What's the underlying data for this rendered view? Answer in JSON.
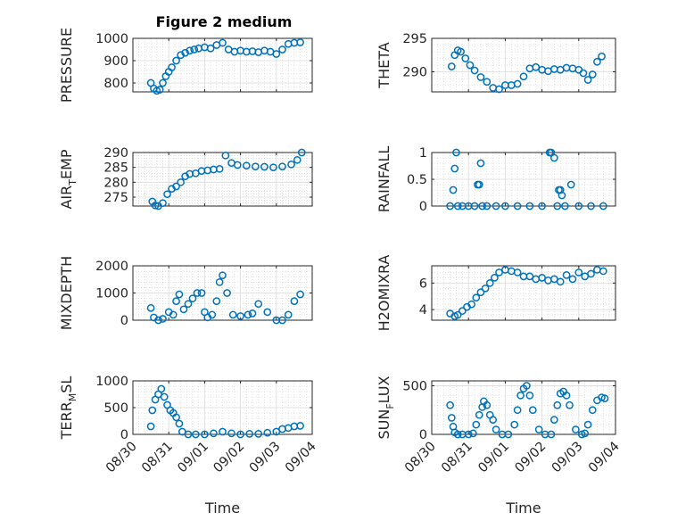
{
  "figure_title": "Figure 2 medium",
  "marker_color": "#0072BD",
  "date_ticks": [
    "08/30",
    "08/31",
    "09/01",
    "09/02",
    "09/03",
    "09/04"
  ],
  "chart_data": [
    {
      "type": "scatter",
      "ylabel": "PRESSURE",
      "ylim": [
        760,
        1000
      ],
      "yticks": [
        800,
        900,
        1000
      ],
      "ytick_labels": [
        "800",
        "900",
        "1000"
      ],
      "xlabel": "",
      "grid": true,
      "title": "Figure 2 medium",
      "x": [
        "08/30 12:00",
        "08/30 14:00",
        "08/30 16:00",
        "08/30 18:00",
        "08/30 20:00",
        "08/30 22:00",
        "08/31 00:00",
        "08/31 02:00",
        "08/31 05:00",
        "08/31 08:00",
        "08/31 11:00",
        "08/31 14:00",
        "08/31 17:00",
        "08/31 20:00",
        "09/01 00:00",
        "09/01 04:00",
        "09/01 08:00",
        "09/01 12:00",
        "09/01 16:00",
        "09/01 20:00",
        "09/02 00:00",
        "09/02 04:00",
        "09/02 08:00",
        "09/02 12:00",
        "09/02 16:00",
        "09/02 20:00",
        "09/03 00:00",
        "09/03 04:00",
        "09/03 08:00",
        "09/03 12:00",
        "09/03 16:00"
      ],
      "y": [
        800,
        775,
        765,
        770,
        800,
        830,
        850,
        870,
        900,
        925,
        935,
        945,
        950,
        955,
        960,
        955,
        970,
        980,
        950,
        940,
        945,
        940,
        942,
        938,
        945,
        940,
        930,
        950,
        975,
        980,
        982
      ]
    },
    {
      "type": "scatter",
      "ylabel": "THETA",
      "ylim": [
        287,
        295
      ],
      "yticks": [
        290,
        295
      ],
      "ytick_labels": [
        "290",
        "295"
      ],
      "xlabel": "",
      "grid": true,
      "x": [
        "08/30 13:00",
        "08/30 15:00",
        "08/30 17:00",
        "08/30 19:00",
        "08/30 22:00",
        "08/31 01:00",
        "08/31 04:00",
        "08/31 08:00",
        "08/31 12:00",
        "08/31 16:00",
        "08/31 20:00",
        "09/01 00:00",
        "09/01 04:00",
        "09/01 08:00",
        "09/01 12:00",
        "09/01 16:00",
        "09/01 20:00",
        "09/02 00:00",
        "09/02 04:00",
        "09/02 08:00",
        "09/02 12:00",
        "09/02 16:00",
        "09/02 20:00",
        "09/03 00:00",
        "09/03 03:00",
        "09/03 06:00",
        "09/03 09:00",
        "09/03 12:00",
        "09/03 15:00"
      ],
      "y": [
        290.8,
        292.5,
        293.2,
        293.0,
        292.0,
        291.0,
        290.2,
        289.2,
        288.5,
        287.6,
        287.4,
        288.0,
        288.0,
        288.2,
        289.3,
        290.5,
        290.7,
        290.3,
        290.1,
        290.4,
        290.3,
        290.6,
        290.5,
        290.3,
        289.8,
        288.8,
        289.6,
        291.5,
        292.3
      ]
    },
    {
      "type": "scatter",
      "ylabel": "AIR_TEMP",
      "ylim": [
        272,
        290
      ],
      "yticks": [
        275,
        280,
        285,
        290
      ],
      "ytick_labels": [
        "275",
        "280",
        "285",
        "290"
      ],
      "xlabel": "",
      "grid": true,
      "x": [
        "08/30 13:00",
        "08/30 15:00",
        "08/30 17:00",
        "08/30 20:00",
        "08/30 23:00",
        "08/31 02:00",
        "08/31 05:00",
        "08/31 08:00",
        "08/31 11:00",
        "08/31 14:00",
        "08/31 18:00",
        "08/31 22:00",
        "09/01 02:00",
        "09/01 06:00",
        "09/01 10:00",
        "09/01 14:00",
        "09/01 18:00",
        "09/01 22:00",
        "09/02 04:00",
        "09/02 10:00",
        "09/02 16:00",
        "09/02 22:00",
        "09/03 04:00",
        "09/03 10:00",
        "09/03 14:00",
        "09/03 17:00"
      ],
      "y": [
        273.5,
        272.2,
        272.0,
        273.0,
        276.0,
        277.8,
        278.6,
        280.0,
        282.0,
        282.8,
        283.0,
        283.8,
        284.0,
        284.3,
        284.5,
        289.0,
        286.5,
        285.8,
        285.6,
        285.3,
        285.2,
        285.0,
        285.3,
        286.0,
        287.5,
        290.0
      ]
    },
    {
      "type": "scatter",
      "ylabel": "RAINFALL",
      "ylim": [
        0,
        1
      ],
      "yticks": [
        0,
        0.5,
        1
      ],
      "ytick_labels": [
        "0",
        "0.5",
        "1"
      ],
      "xlabel": "",
      "grid": true,
      "x": [
        "08/30 12:00",
        "08/30 14:00",
        "08/30 15:00",
        "08/30 16:00",
        "08/30 17:00",
        "08/30 20:00",
        "08/31 00:00",
        "08/31 04:00",
        "08/31 06:00",
        "08/31 07:00",
        "08/31 08:00",
        "08/31 09:00",
        "08/31 12:00",
        "08/31 18:00",
        "09/01 00:00",
        "09/01 08:00",
        "09/01 16:00",
        "09/02 00:00",
        "09/02 05:00",
        "09/02 06:00",
        "09/02 08:00",
        "09/02 10:00",
        "09/02 11:00",
        "09/02 12:00",
        "09/02 13:00",
        "09/02 15:00",
        "09/02 19:00",
        "09/03 00:00",
        "09/03 08:00",
        "09/03 16:00"
      ],
      "y": [
        0,
        0.3,
        0.7,
        1.0,
        0,
        0,
        0,
        0,
        0.4,
        0.4,
        0.8,
        0,
        0,
        0,
        0,
        0,
        0,
        0,
        1.0,
        1.0,
        0.9,
        0,
        0.3,
        0.3,
        0.2,
        0,
        0.4,
        0,
        0,
        0
      ]
    },
    {
      "type": "scatter",
      "ylabel": "MIXDEPTH",
      "ylim": [
        0,
        2000
      ],
      "yticks": [
        0,
        1000,
        2000
      ],
      "ytick_labels": [
        "0",
        "1000",
        "2000"
      ],
      "xlabel": "",
      "grid": true,
      "x": [
        "08/30 12:00",
        "08/30 14:00",
        "08/30 17:00",
        "08/30 20:00",
        "08/31 00:00",
        "08/31 03:00",
        "08/31 05:00",
        "08/31 07:00",
        "08/31 10:00",
        "08/31 13:00",
        "08/31 16:00",
        "08/31 19:00",
        "08/31 22:00",
        "09/01 00:00",
        "09/01 02:00",
        "09/01 05:00",
        "09/01 08:00",
        "09/01 10:00",
        "09/01 12:00",
        "09/01 15:00",
        "09/01 19:00",
        "09/02 00:00",
        "09/02 05:00",
        "09/02 08:00",
        "09/02 12:00",
        "09/02 18:00",
        "09/03 00:00",
        "09/03 04:00",
        "09/03 08:00",
        "09/03 12:00",
        "09/03 16:00"
      ],
      "y": [
        450,
        100,
        0,
        50,
        300,
        200,
        700,
        950,
        400,
        600,
        800,
        1000,
        1000,
        300,
        100,
        200,
        700,
        1400,
        1650,
        1000,
        200,
        150,
        200,
        250,
        600,
        300,
        0,
        0,
        200,
        700,
        950
      ]
    },
    {
      "type": "scatter",
      "ylabel": "H2OMIXRA",
      "ylim": [
        3.2,
        7.3
      ],
      "yticks": [
        4,
        6
      ],
      "ytick_labels": [
        "4",
        "6"
      ],
      "xlabel": "",
      "grid": true,
      "x": [
        "08/30 12:00",
        "08/30 15:00",
        "08/30 17:00",
        "08/30 20:00",
        "08/30 23:00",
        "08/31 02:00",
        "08/31 05:00",
        "08/31 08:00",
        "08/31 11:00",
        "08/31 14:00",
        "08/31 17:00",
        "08/31 20:00",
        "09/01 00:00",
        "09/01 04:00",
        "09/01 08:00",
        "09/01 12:00",
        "09/01 16:00",
        "09/01 20:00",
        "09/02 00:00",
        "09/02 04:00",
        "09/02 08:00",
        "09/02 12:00",
        "09/02 16:00",
        "09/02 20:00",
        "09/03 00:00",
        "09/03 04:00",
        "09/03 08:00",
        "09/03 12:00",
        "09/03 16:00"
      ],
      "y": [
        3.7,
        3.5,
        3.6,
        3.9,
        4.2,
        4.4,
        4.9,
        5.3,
        5.6,
        6.0,
        6.4,
        6.8,
        7.0,
        6.9,
        6.8,
        6.5,
        6.5,
        6.3,
        6.4,
        6.2,
        6.3,
        6.1,
        6.6,
        6.3,
        6.8,
        6.5,
        6.7,
        7.0,
        6.9
      ]
    },
    {
      "type": "scatter",
      "ylabel": "TERR_MSL",
      "ylim": [
        0,
        1000
      ],
      "yticks": [
        0,
        500,
        1000
      ],
      "ytick_labels": [
        "0",
        "500",
        "1000"
      ],
      "xlabel": "Time",
      "grid": true,
      "x": [
        "08/30 12:00",
        "08/30 13:00",
        "08/30 15:00",
        "08/30 17:00",
        "08/30 19:00",
        "08/30 21:00",
        "08/30 23:00",
        "08/31 01:00",
        "08/31 03:00",
        "08/31 05:00",
        "08/31 07:00",
        "08/31 09:00",
        "08/31 13:00",
        "08/31 18:00",
        "09/01 00:00",
        "09/01 06:00",
        "09/01 12:00",
        "09/01 18:00",
        "09/02 00:00",
        "09/02 06:00",
        "09/02 12:00",
        "09/02 18:00",
        "09/03 00:00",
        "09/03 04:00",
        "09/03 08:00",
        "09/03 12:00",
        "09/03 16:00"
      ],
      "y": [
        150,
        450,
        650,
        750,
        850,
        700,
        550,
        450,
        400,
        320,
        200,
        50,
        0,
        0,
        0,
        20,
        50,
        20,
        0,
        10,
        10,
        30,
        50,
        100,
        120,
        150,
        160
      ]
    },
    {
      "type": "scatter",
      "ylabel": "SUN_FLUX",
      "ylim": [
        0,
        550
      ],
      "yticks": [
        0,
        500
      ],
      "ytick_labels": [
        "0",
        "500"
      ],
      "xlabel": "Time",
      "grid": true,
      "x": [
        "08/30 12:00",
        "08/30 13:00",
        "08/30 14:00",
        "08/30 15:00",
        "08/30 17:00",
        "08/30 20:00",
        "08/31 00:00",
        "08/31 03:00",
        "08/31 05:00",
        "08/31 07:00",
        "08/31 09:00",
        "08/31 10:00",
        "08/31 12:00",
        "08/31 14:00",
        "08/31 16:00",
        "08/31 18:00",
        "08/31 22:00",
        "09/01 02:00",
        "09/01 06:00",
        "09/01 08:00",
        "09/01 10:00",
        "09/01 12:00",
        "09/01 14:00",
        "09/01 16:00",
        "09/01 18:00",
        "09/01 22:00",
        "09/02 02:00",
        "09/02 06:00",
        "09/02 08:00",
        "09/02 10:00",
        "09/02 12:00",
        "09/02 14:00",
        "09/02 16:00",
        "09/02 18:00",
        "09/02 22:00",
        "09/03 02:00",
        "09/03 04:00",
        "09/03 06:00",
        "09/03 09:00",
        "09/03 12:00",
        "09/03 15:00",
        "09/03 17:00"
      ],
      "y": [
        300,
        170,
        80,
        20,
        0,
        0,
        0,
        10,
        100,
        200,
        280,
        340,
        300,
        200,
        150,
        50,
        0,
        0,
        100,
        250,
        400,
        470,
        500,
        400,
        250,
        50,
        0,
        0,
        150,
        300,
        420,
        440,
        400,
        300,
        50,
        0,
        10,
        100,
        250,
        350,
        380,
        370
      ]
    }
  ]
}
